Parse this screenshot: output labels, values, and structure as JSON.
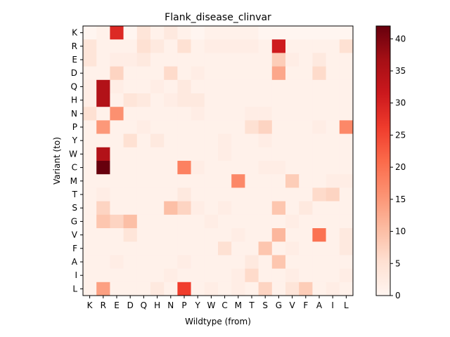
{
  "chart_data": {
    "type": "heatmap",
    "title": "Flank_disease_clinvar",
    "xlabel": "Wildtype (from)",
    "ylabel": "Variant (to)",
    "x_categories": [
      "K",
      "R",
      "E",
      "D",
      "Q",
      "H",
      "N",
      "P",
      "Y",
      "W",
      "C",
      "M",
      "T",
      "S",
      "G",
      "V",
      "F",
      "A",
      "I",
      "L"
    ],
    "y_categories": [
      "K",
      "R",
      "E",
      "D",
      "Q",
      "H",
      "N",
      "P",
      "Y",
      "W",
      "C",
      "M",
      "T",
      "S",
      "G",
      "V",
      "F",
      "A",
      "I",
      "L"
    ],
    "colorscale": "Reds",
    "colorbar": {
      "min": 0,
      "max": 42,
      "ticks": [
        0,
        5,
        10,
        15,
        20,
        25,
        30,
        35,
        40
      ]
    },
    "values": [
      [
        0,
        1,
        29,
        0,
        4,
        1,
        3,
        1,
        0,
        1,
        1,
        1,
        1,
        0,
        0,
        0,
        0,
        0,
        0,
        0
      ],
      [
        4,
        1,
        1,
        1,
        5,
        3,
        1,
        5,
        1,
        2,
        2,
        2,
        2,
        1,
        31,
        1,
        1,
        1,
        1,
        5
      ],
      [
        4,
        1,
        2,
        2,
        3,
        1,
        1,
        1,
        1,
        1,
        1,
        1,
        1,
        1,
        8,
        2,
        1,
        3,
        1,
        1
      ],
      [
        1,
        1,
        7,
        1,
        1,
        1,
        6,
        1,
        2,
        1,
        1,
        1,
        1,
        1,
        13,
        1,
        1,
        6,
        1,
        1
      ],
      [
        2,
        35,
        2,
        1,
        1,
        2,
        1,
        3,
        1,
        1,
        1,
        1,
        1,
        1,
        1,
        1,
        1,
        1,
        1,
        1
      ],
      [
        2,
        35,
        1,
        4,
        3,
        1,
        2,
        3,
        3,
        1,
        1,
        1,
        1,
        1,
        1,
        1,
        1,
        1,
        1,
        1
      ],
      [
        5,
        1,
        16,
        1,
        1,
        1,
        1,
        1,
        2,
        1,
        1,
        1,
        2,
        2,
        1,
        1,
        1,
        1,
        1,
        1
      ],
      [
        1,
        15,
        1,
        1,
        2,
        1,
        1,
        1,
        1,
        1,
        1,
        1,
        5,
        7,
        1,
        1,
        1,
        2,
        1,
        17
      ],
      [
        1,
        1,
        1,
        5,
        1,
        3,
        1,
        1,
        1,
        1,
        2,
        1,
        1,
        2,
        1,
        1,
        1,
        1,
        1,
        1
      ],
      [
        1,
        35,
        1,
        1,
        1,
        1,
        1,
        1,
        1,
        1,
        2,
        1,
        1,
        1,
        1,
        1,
        1,
        1,
        1,
        1
      ],
      [
        1,
        42,
        1,
        1,
        1,
        1,
        1,
        18,
        2,
        1,
        1,
        1,
        1,
        2,
        2,
        1,
        1,
        1,
        1,
        1
      ],
      [
        1,
        1,
        1,
        1,
        1,
        1,
        1,
        1,
        1,
        1,
        1,
        17,
        1,
        1,
        1,
        8,
        1,
        1,
        2,
        2
      ],
      [
        1,
        2,
        1,
        1,
        1,
        1,
        1,
        3,
        1,
        1,
        1,
        1,
        1,
        1,
        1,
        1,
        1,
        6,
        7,
        1
      ],
      [
        1,
        7,
        1,
        1,
        1,
        1,
        10,
        7,
        2,
        1,
        2,
        1,
        1,
        1,
        9,
        1,
        3,
        1,
        1,
        1
      ],
      [
        1,
        9,
        7,
        10,
        1,
        1,
        1,
        1,
        1,
        2,
        1,
        1,
        1,
        1,
        1,
        2,
        1,
        1,
        1,
        1
      ],
      [
        1,
        1,
        1,
        4,
        1,
        1,
        1,
        1,
        1,
        1,
        1,
        2,
        1,
        1,
        11,
        1,
        1,
        20,
        1,
        3
      ],
      [
        1,
        1,
        1,
        1,
        1,
        1,
        1,
        1,
        1,
        1,
        5,
        1,
        1,
        9,
        1,
        2,
        1,
        1,
        1,
        3
      ],
      [
        1,
        1,
        2,
        1,
        1,
        1,
        1,
        2,
        1,
        1,
        1,
        1,
        3,
        1,
        9,
        1,
        1,
        1,
        1,
        1
      ],
      [
        1,
        1,
        1,
        1,
        1,
        1,
        2,
        1,
        1,
        1,
        1,
        2,
        6,
        1,
        1,
        2,
        1,
        1,
        1,
        2
      ],
      [
        1,
        14,
        1,
        1,
        1,
        3,
        1,
        26,
        1,
        2,
        1,
        2,
        1,
        7,
        1,
        4,
        8,
        1,
        2,
        1
      ]
    ]
  }
}
